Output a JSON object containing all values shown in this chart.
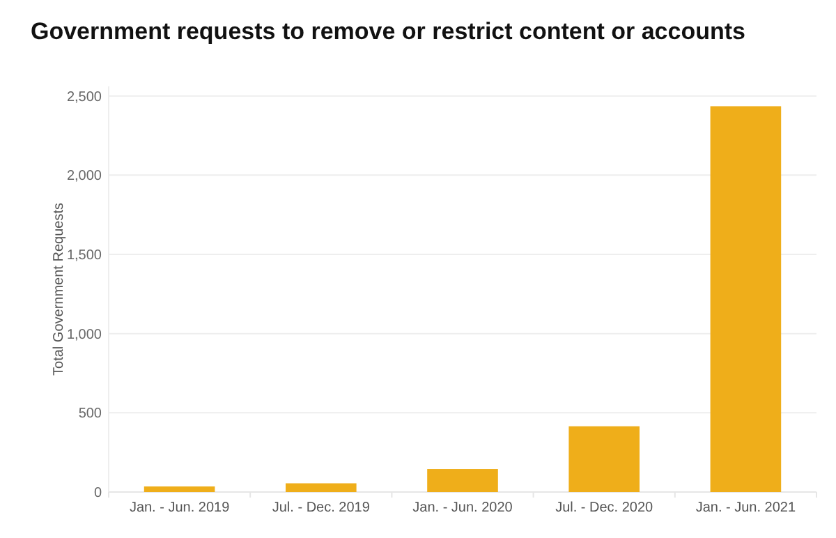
{
  "chart_data": {
    "type": "bar",
    "title": "Government requests to remove or restrict content or accounts",
    "ylabel": "Total Government Requests",
    "categories": [
      "Jan. - Jun. 2019",
      "Jul. - Dec. 2019",
      "Jan. - Jun. 2020",
      "Jul. - Dec. 2020",
      "Jan. - Jun. 2021"
    ],
    "values": [
      35,
      55,
      145,
      415,
      2435
    ],
    "color": "#efae1a",
    "ylim": [
      0,
      2560
    ],
    "yticks": [
      {
        "value": 0,
        "label": "0"
      },
      {
        "value": 500,
        "label": "500"
      },
      {
        "value": 1000,
        "label": "1,000"
      },
      {
        "value": 1500,
        "label": "1,500"
      },
      {
        "value": 2000,
        "label": "2,000"
      },
      {
        "value": 2500,
        "label": "2,500"
      }
    ],
    "grid": "y"
  }
}
